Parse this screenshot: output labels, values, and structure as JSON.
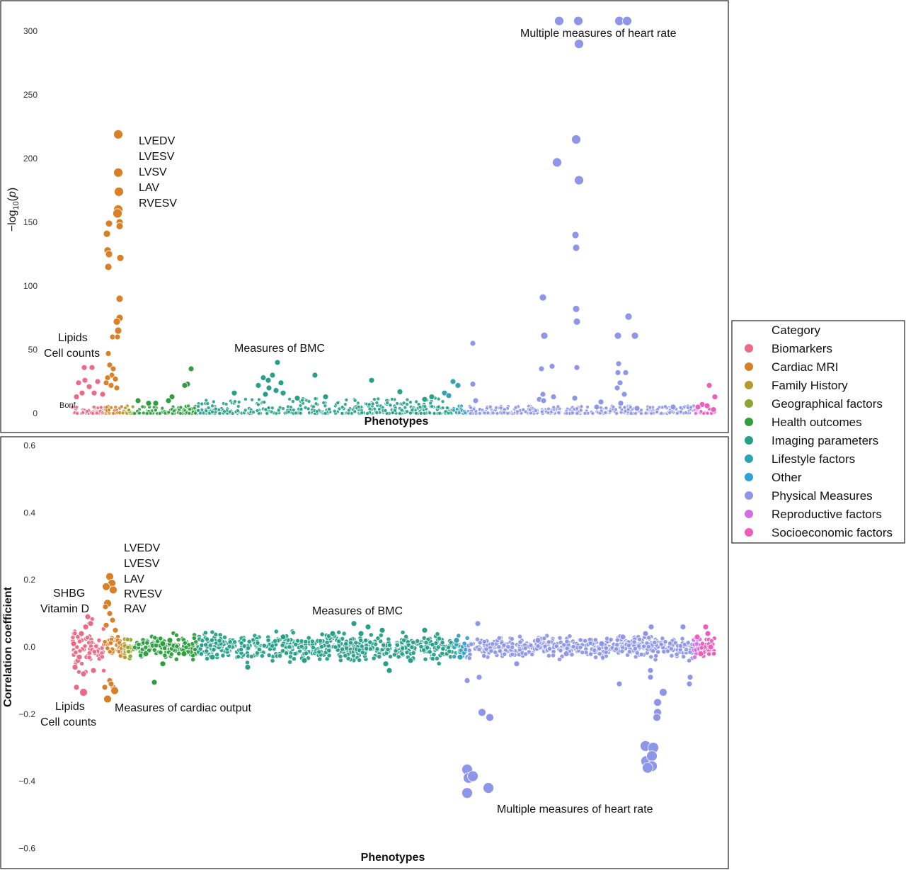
{
  "colors": {
    "Biomarkers": "#ec6a86",
    "Cardiac MRI": "#d98027",
    "Family History": "#b59a2e",
    "Geographical factors": "#8aa72f",
    "Health outcomes": "#2e9e3e",
    "Imaging parameters": "#27a088",
    "Lifestyle factors": "#31a3b5",
    "Other": "#32a1db",
    "Physical Measures": "#8e96ea",
    "Reproductive factors": "#d46ee6",
    "Socioeconomic factors": "#ee5cbc"
  },
  "legend": {
    "title": "Category",
    "entries": [
      "Biomarkers",
      "Cardiac MRI",
      "Family History",
      "Geographical factors",
      "Health outcomes",
      "Imaging parameters",
      "Lifestyle factors",
      "Other",
      "Physical Measures",
      "Reproductive factors",
      "Socioeconomic factors"
    ]
  },
  "chart_data": [
    {
      "type": "scatter",
      "title": "",
      "xlabel": "Phenotypes",
      "ylabel": "−log10(p)",
      "ylim": [
        0,
        310
      ],
      "yticks": [
        0,
        50,
        100,
        150,
        200,
        250,
        300
      ],
      "threshold_label": "Bonf",
      "annotations": {
        "lipids": "Lipids",
        "cells": "Cell counts",
        "cardiac": [
          "LVEDV",
          "LVESV",
          "LVSV",
          "LAV",
          "RVESV"
        ],
        "bmc": "Measures of BMC",
        "hr": "Multiple measures of heart rate"
      },
      "series": [
        {
          "name": "Cardiac MRI",
          "values": [
            [
              167,
              219
            ],
            [
              167,
              189
            ],
            [
              168,
              174
            ],
            [
              167,
              160
            ],
            [
              166,
              157
            ],
            [
              169,
              150
            ],
            [
              169,
              147
            ],
            [
              154,
              149
            ],
            [
              151,
              141
            ],
            [
              152,
              128
            ],
            [
              154,
              125
            ],
            [
              153,
              115
            ],
            [
              170,
              122
            ],
            [
              169,
              90
            ],
            [
              169,
              75
            ],
            [
              165,
              72
            ],
            [
              167,
              65
            ],
            [
              159,
              60
            ],
            [
              166,
              60
            ],
            [
              153,
              47
            ],
            [
              155,
              38
            ],
            [
              160,
              35
            ],
            [
              158,
              30
            ],
            [
              152,
              28
            ],
            [
              163,
              27
            ],
            [
              150,
              24
            ],
            [
              157,
              22
            ],
            [
              165,
              20
            ]
          ]
        },
        {
          "name": "Biomarkers",
          "values": [
            [
              119,
              36
            ],
            [
              130,
              36
            ],
            [
              120,
              26
            ],
            [
              111,
              24
            ],
            [
              138,
              25
            ],
            [
              126,
              21
            ],
            [
              116,
              16
            ],
            [
              108,
              13
            ],
            [
              133,
              16
            ],
            [
              145,
              15
            ]
          ]
        },
        {
          "name": "Health outcomes",
          "values": [
            [
              270,
              35
            ],
            [
              265,
              23
            ],
            [
              261,
              22
            ],
            [
              243,
              13
            ],
            [
              238,
              10
            ],
            [
              210,
              8
            ],
            [
              195,
              10
            ],
            [
              220,
              8
            ]
          ]
        },
        {
          "name": "Imaging parameters",
          "values": [
            [
              392,
              40
            ],
            [
              385,
              30
            ],
            [
              372,
              28
            ],
            [
              379,
              26
            ],
            [
              397,
              24
            ],
            [
              365,
              22
            ],
            [
              445,
              30
            ],
            [
              525,
              26
            ],
            [
              380,
              20
            ],
            [
              390,
              18
            ],
            [
              375,
              15
            ],
            [
              400,
              16
            ],
            [
              331,
              16
            ],
            [
              420,
              12
            ],
            [
              460,
              13
            ],
            [
              565,
              17
            ],
            [
              600,
              11
            ],
            [
              610,
              13
            ]
          ]
        },
        {
          "name": "Lifestyle factors",
          "values": [
            [
              640,
              25
            ],
            [
              647,
              22
            ],
            [
              628,
              16
            ],
            [
              634,
              14
            ]
          ]
        },
        {
          "name": "Physical Measures",
          "values": [
            [
              790,
              308
            ],
            [
              817,
              308
            ],
            [
              875,
              308
            ],
            [
              886,
              308
            ],
            [
              818,
              290
            ],
            [
              814,
              215
            ],
            [
              787,
              197
            ],
            [
              818,
              183
            ],
            [
              813,
              140
            ],
            [
              814,
              130
            ],
            [
              767,
              91
            ],
            [
              814,
              82
            ],
            [
              888,
              76
            ],
            [
              815,
              72
            ],
            [
              897,
              61
            ],
            [
              769,
              61
            ],
            [
              873,
              61
            ],
            [
              668,
              55
            ],
            [
              874,
              39
            ],
            [
              765,
              35
            ],
            [
              815,
              36
            ],
            [
              884,
              32
            ],
            [
              873,
              32
            ],
            [
              780,
              37
            ],
            [
              876,
              24
            ],
            [
              668,
              23
            ],
            [
              872,
              20
            ],
            [
              882,
              15
            ],
            [
              767,
              15
            ],
            [
              782,
              13
            ],
            [
              762,
              11
            ],
            [
              768,
              10
            ],
            [
              849,
              9
            ],
            [
              877,
              8
            ],
            [
              672,
              10
            ],
            [
              812,
              12
            ],
            [
              843,
              5
            ],
            [
              900,
              4
            ],
            [
              951,
              5
            ]
          ]
        },
        {
          "name": "Socioeconomic factors",
          "values": [
            [
              1002,
              22
            ],
            [
              1010,
              13
            ],
            [
              992,
              7
            ],
            [
              999,
              6
            ],
            [
              986,
              5
            ],
            [
              1008,
              3
            ]
          ]
        }
      ]
    },
    {
      "type": "scatter",
      "title": "",
      "xlabel": "Phenotypes",
      "ylabel": "Correlation coefficient",
      "ylim": [
        -0.6,
        0.6
      ],
      "yticks": [
        -0.6,
        -0.4,
        -0.2,
        0.0,
        0.2,
        0.4,
        0.6
      ],
      "annotations": {
        "shbg": "SHBG",
        "vitd": "Vitamin D",
        "cardiac": [
          "LVEDV",
          "LVESV",
          "LAV",
          "RVESV",
          "RAV"
        ],
        "lipids": "Lipids",
        "cells": "Cell counts",
        "cardiac_output": "Measures of cardiac output",
        "bmc": "Measures of BMC",
        "hr": "Multiple measures of heart rate"
      },
      "series": [
        {
          "name": "Cardiac MRI",
          "values": [
            [
              155,
              0.21
            ],
            [
              158,
              0.19
            ],
            [
              150,
              0.18
            ],
            [
              160,
              0.17
            ],
            [
              152,
              0.13
            ],
            [
              149,
              0.12
            ],
            [
              155,
              0.1
            ],
            [
              159,
              0.08
            ],
            [
              150,
              0.065
            ],
            [
              163,
              0.05
            ],
            [
              155,
              -0.1
            ],
            [
              160,
              -0.12
            ],
            [
              157,
              -0.11
            ],
            [
              148,
              -0.12
            ],
            [
              152,
              -0.155
            ],
            [
              162,
              -0.13
            ]
          ]
        },
        {
          "name": "Biomarkers",
          "values": [
            [
              124,
              0.09
            ],
            [
              121,
              0.06
            ],
            [
              115,
              0.04
            ],
            [
              104,
              0.01
            ],
            [
              110,
              -0.04
            ],
            [
              106,
              -0.06
            ],
            [
              118,
              -0.08
            ],
            [
              108,
              -0.12
            ],
            [
              118,
              -0.135
            ],
            [
              132,
              -0.07
            ],
            [
              128,
              0.07
            ],
            [
              112,
              -0.03
            ]
          ]
        },
        {
          "name": "Health outcomes",
          "values": [
            [
              218,
              -0.105
            ],
            [
              230,
              -0.05
            ],
            [
              206,
              -0.02
            ],
            [
              240,
              0.02
            ],
            [
              260,
              -0.02
            ],
            [
              230,
              0.01
            ]
          ]
        },
        {
          "name": "Imaging parameters",
          "values": [
            [
              500,
              0.07
            ],
            [
              520,
              0.06
            ],
            [
              540,
              0.05
            ],
            [
              510,
              0.04
            ],
            [
              545,
              -0.05
            ],
            [
              550,
              -0.07
            ],
            [
              430,
              -0.04
            ],
            [
              350,
              -0.06
            ],
            [
              300,
              -0.03
            ],
            [
              600,
              0.05
            ],
            [
              400,
              0.03
            ],
            [
              470,
              0.04
            ],
            [
              580,
              -0.04
            ]
          ]
        },
        {
          "name": "Lifestyle factors",
          "values": [
            [
              650,
              -0.03
            ],
            [
              645,
              0.02
            ]
          ]
        },
        {
          "name": "Physical Measures",
          "values": [
            [
              660,
              -0.365
            ],
            [
              662,
              -0.39
            ],
            [
              668,
              -0.385
            ],
            [
              660,
              -0.435
            ],
            [
              690,
              -0.42
            ],
            [
              681,
              -0.195
            ],
            [
              692,
              -0.21
            ],
            [
              912,
              -0.295
            ],
            [
              923,
              -0.3
            ],
            [
              913,
              -0.34
            ],
            [
              921,
              -0.325
            ],
            [
              921,
              -0.355
            ],
            [
              915,
              -0.36
            ],
            [
              929,
              -0.165
            ],
            [
              929,
              -0.195
            ],
            [
              928,
              -0.21
            ],
            [
              937,
              -0.135
            ],
            [
              919,
              -0.07
            ],
            [
              919,
              -0.09
            ],
            [
              875,
              -0.11
            ],
            [
              974,
              -0.11
            ],
            [
              975,
              -0.09
            ],
            [
              677,
              -0.09
            ],
            [
              660,
              -0.1
            ],
            [
              675,
              0.07
            ],
            [
              920,
              0.06
            ],
            [
              965,
              0.06
            ],
            [
              912,
              0.04
            ],
            [
              880,
              0.03
            ],
            [
              760,
              0.02
            ],
            [
              800,
              -0.02
            ],
            [
              730,
              -0.05
            ],
            [
              850,
              0.01
            ]
          ]
        },
        {
          "name": "Socioeconomic factors",
          "values": [
            [
              997,
              0.06
            ],
            [
              985,
              0.03
            ],
            [
              1004,
              0.0
            ],
            [
              990,
              -0.02
            ],
            [
              1000,
              0.04
            ]
          ]
        }
      ]
    }
  ]
}
